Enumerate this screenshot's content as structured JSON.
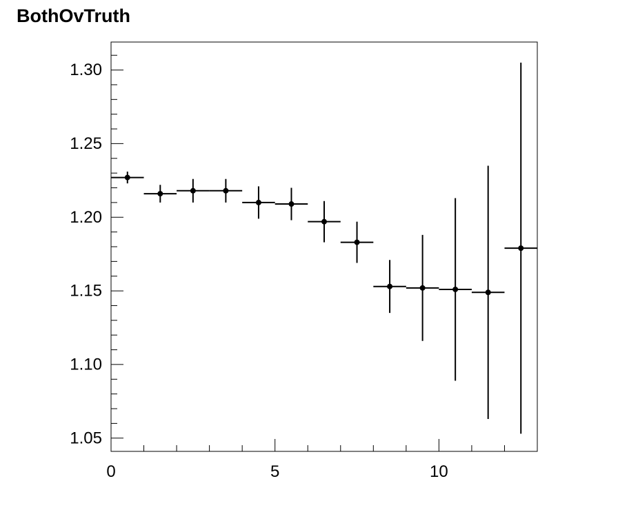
{
  "chart_data": {
    "type": "scatter",
    "title": "BothOvTruth",
    "xlabel": "",
    "ylabel": "",
    "xlim": [
      0,
      13
    ],
    "ylim": [
      1.041,
      1.319
    ],
    "x_tick_labels": [
      "0",
      "5",
      "10"
    ],
    "y_tick_labels": [
      "1.05",
      "1.10",
      "1.15",
      "1.20",
      "1.25",
      "1.30"
    ],
    "grid": false,
    "series": [
      {
        "x": [
          0.5,
          1.5,
          2.5,
          3.5,
          4.5,
          5.5,
          6.5,
          7.5,
          8.5,
          9.5,
          10.5,
          11.5,
          12.5
        ],
        "x_err": [
          0.5,
          0.5,
          0.5,
          0.5,
          0.5,
          0.5,
          0.5,
          0.5,
          0.5,
          0.5,
          0.5,
          0.5,
          0.5
        ],
        "y": [
          1.227,
          1.216,
          1.218,
          1.218,
          1.21,
          1.209,
          1.197,
          1.183,
          1.153,
          1.152,
          1.151,
          1.149,
          1.179
        ],
        "y_err": [
          0.004,
          0.006,
          0.008,
          0.008,
          0.011,
          0.011,
          0.014,
          0.014,
          0.018,
          0.036,
          0.062,
          0.086,
          0.126
        ]
      }
    ],
    "colors": {
      "marker": "#000000",
      "axis": "#000000",
      "background": "#ffffff"
    }
  }
}
